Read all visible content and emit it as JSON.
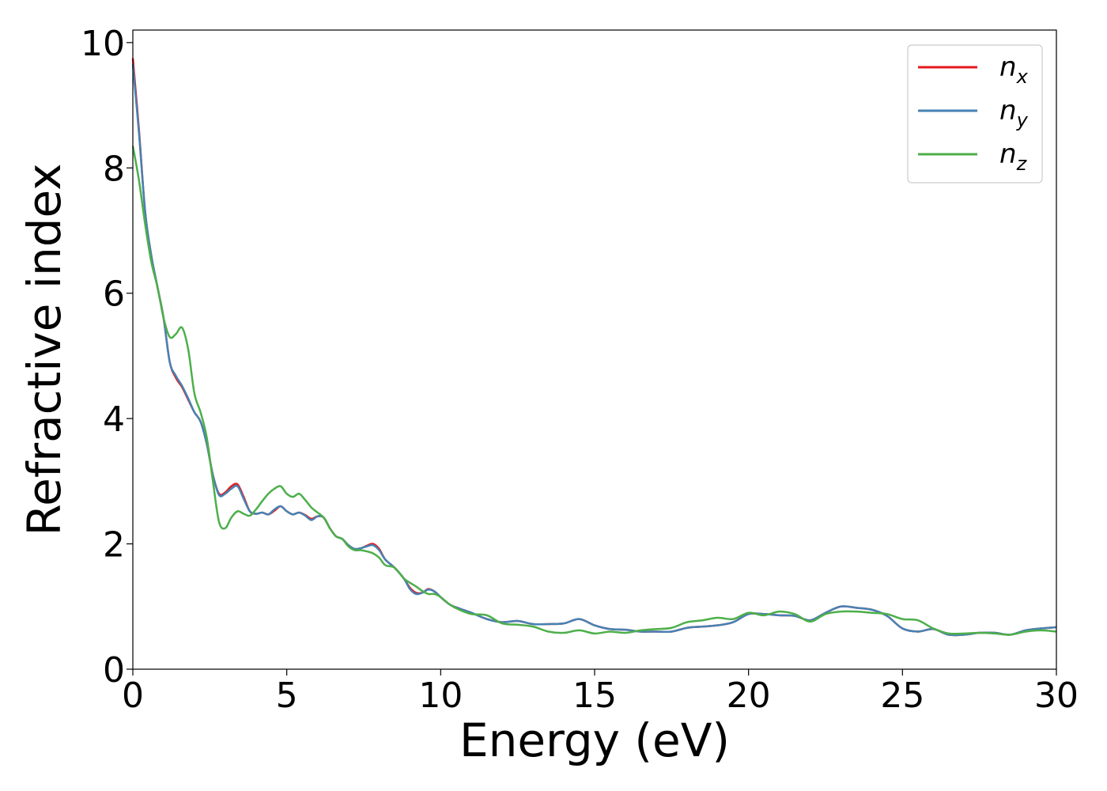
{
  "chart_data": {
    "type": "line",
    "title": "",
    "xlabel": "Energy (eV)",
    "ylabel": "Refractive index",
    "xlim": [
      0,
      30
    ],
    "ylim": [
      0,
      10.2
    ],
    "xticks": [
      0,
      5,
      10,
      15,
      20,
      25,
      30
    ],
    "yticks": [
      0,
      2,
      4,
      6,
      8,
      10
    ],
    "grid": false,
    "legend_position": "top-right",
    "series": [
      {
        "name": "n",
        "subscript": "x",
        "color": "#e41a1c",
        "points": [
          [
            0,
            9.75
          ],
          [
            0.2,
            8.6
          ],
          [
            0.4,
            7.3
          ],
          [
            0.6,
            6.6
          ],
          [
            0.8,
            6.1
          ],
          [
            1.0,
            5.6
          ],
          [
            1.2,
            4.9
          ],
          [
            1.4,
            4.65
          ],
          [
            1.6,
            4.5
          ],
          [
            1.8,
            4.3
          ],
          [
            2.0,
            4.1
          ],
          [
            2.2,
            3.95
          ],
          [
            2.4,
            3.6
          ],
          [
            2.6,
            3.1
          ],
          [
            2.8,
            2.8
          ],
          [
            3.0,
            2.82
          ],
          [
            3.2,
            2.92
          ],
          [
            3.4,
            2.95
          ],
          [
            3.6,
            2.75
          ],
          [
            3.8,
            2.52
          ],
          [
            4.0,
            2.48
          ],
          [
            4.2,
            2.5
          ],
          [
            4.4,
            2.47
          ],
          [
            4.6,
            2.53
          ],
          [
            4.8,
            2.6
          ],
          [
            5.0,
            2.52
          ],
          [
            5.2,
            2.47
          ],
          [
            5.4,
            2.5
          ],
          [
            5.6,
            2.46
          ],
          [
            5.8,
            2.4
          ],
          [
            6.0,
            2.44
          ],
          [
            6.2,
            2.42
          ],
          [
            6.4,
            2.25
          ],
          [
            6.6,
            2.12
          ],
          [
            6.8,
            2.08
          ],
          [
            7.0,
            1.98
          ],
          [
            7.2,
            1.92
          ],
          [
            7.4,
            1.93
          ],
          [
            7.6,
            1.97
          ],
          [
            7.8,
            2.0
          ],
          [
            8.0,
            1.92
          ],
          [
            8.2,
            1.75
          ],
          [
            8.5,
            1.62
          ],
          [
            8.8,
            1.45
          ],
          [
            9.0,
            1.3
          ],
          [
            9.2,
            1.22
          ],
          [
            9.4,
            1.22
          ],
          [
            9.6,
            1.28
          ],
          [
            9.8,
            1.24
          ],
          [
            10.0,
            1.15
          ],
          [
            10.3,
            1.03
          ],
          [
            10.6,
            0.97
          ],
          [
            11.0,
            0.9
          ],
          [
            11.5,
            0.8
          ],
          [
            12.0,
            0.75
          ],
          [
            12.5,
            0.77
          ],
          [
            13.0,
            0.72
          ],
          [
            13.5,
            0.72
          ],
          [
            14.0,
            0.73
          ],
          [
            14.5,
            0.8
          ],
          [
            15.0,
            0.7
          ],
          [
            15.5,
            0.64
          ],
          [
            16.0,
            0.63
          ],
          [
            16.5,
            0.6
          ],
          [
            17.0,
            0.6
          ],
          [
            17.5,
            0.6
          ],
          [
            18.0,
            0.66
          ],
          [
            18.5,
            0.68
          ],
          [
            19.0,
            0.7
          ],
          [
            19.5,
            0.75
          ],
          [
            20.0,
            0.88
          ],
          [
            20.5,
            0.88
          ],
          [
            21.0,
            0.86
          ],
          [
            21.5,
            0.85
          ],
          [
            22.0,
            0.78
          ],
          [
            22.5,
            0.9
          ],
          [
            23.0,
            1.0
          ],
          [
            23.5,
            0.98
          ],
          [
            24.0,
            0.95
          ],
          [
            24.5,
            0.85
          ],
          [
            25.0,
            0.65
          ],
          [
            25.5,
            0.6
          ],
          [
            26.0,
            0.64
          ],
          [
            26.5,
            0.55
          ],
          [
            27.0,
            0.55
          ],
          [
            27.5,
            0.58
          ],
          [
            28.0,
            0.58
          ],
          [
            28.5,
            0.55
          ],
          [
            29.0,
            0.62
          ],
          [
            29.5,
            0.65
          ],
          [
            30.0,
            0.67
          ]
        ]
      },
      {
        "name": "n",
        "subscript": "y",
        "color": "#4682b4",
        "points": [
          [
            0,
            9.65
          ],
          [
            0.2,
            8.55
          ],
          [
            0.4,
            7.3
          ],
          [
            0.6,
            6.6
          ],
          [
            0.8,
            6.1
          ],
          [
            1.0,
            5.6
          ],
          [
            1.2,
            4.9
          ],
          [
            1.4,
            4.68
          ],
          [
            1.6,
            4.52
          ],
          [
            1.8,
            4.32
          ],
          [
            2.0,
            4.1
          ],
          [
            2.2,
            3.95
          ],
          [
            2.4,
            3.6
          ],
          [
            2.6,
            3.1
          ],
          [
            2.8,
            2.78
          ],
          [
            3.0,
            2.8
          ],
          [
            3.2,
            2.88
          ],
          [
            3.4,
            2.92
          ],
          [
            3.6,
            2.72
          ],
          [
            3.8,
            2.52
          ],
          [
            4.0,
            2.48
          ],
          [
            4.2,
            2.5
          ],
          [
            4.4,
            2.47
          ],
          [
            4.6,
            2.55
          ],
          [
            4.8,
            2.6
          ],
          [
            5.0,
            2.52
          ],
          [
            5.2,
            2.47
          ],
          [
            5.4,
            2.5
          ],
          [
            5.6,
            2.45
          ],
          [
            5.8,
            2.38
          ],
          [
            6.0,
            2.44
          ],
          [
            6.2,
            2.42
          ],
          [
            6.4,
            2.25
          ],
          [
            6.6,
            2.12
          ],
          [
            6.8,
            2.08
          ],
          [
            7.0,
            1.98
          ],
          [
            7.2,
            1.92
          ],
          [
            7.4,
            1.93
          ],
          [
            7.6,
            1.96
          ],
          [
            7.8,
            1.98
          ],
          [
            8.0,
            1.9
          ],
          [
            8.2,
            1.75
          ],
          [
            8.5,
            1.62
          ],
          [
            8.8,
            1.45
          ],
          [
            9.0,
            1.28
          ],
          [
            9.2,
            1.2
          ],
          [
            9.4,
            1.22
          ],
          [
            9.6,
            1.27
          ],
          [
            9.8,
            1.24
          ],
          [
            10.0,
            1.15
          ],
          [
            10.3,
            1.03
          ],
          [
            10.6,
            0.97
          ],
          [
            11.0,
            0.9
          ],
          [
            11.5,
            0.8
          ],
          [
            12.0,
            0.75
          ],
          [
            12.5,
            0.77
          ],
          [
            13.0,
            0.72
          ],
          [
            13.5,
            0.72
          ],
          [
            14.0,
            0.73
          ],
          [
            14.5,
            0.8
          ],
          [
            15.0,
            0.7
          ],
          [
            15.5,
            0.64
          ],
          [
            16.0,
            0.63
          ],
          [
            16.5,
            0.6
          ],
          [
            17.0,
            0.6
          ],
          [
            17.5,
            0.6
          ],
          [
            18.0,
            0.66
          ],
          [
            18.5,
            0.68
          ],
          [
            19.0,
            0.7
          ],
          [
            19.5,
            0.75
          ],
          [
            20.0,
            0.88
          ],
          [
            20.5,
            0.88
          ],
          [
            21.0,
            0.86
          ],
          [
            21.5,
            0.85
          ],
          [
            22.0,
            0.78
          ],
          [
            22.5,
            0.9
          ],
          [
            23.0,
            1.0
          ],
          [
            23.5,
            0.98
          ],
          [
            24.0,
            0.95
          ],
          [
            24.5,
            0.85
          ],
          [
            25.0,
            0.65
          ],
          [
            25.5,
            0.6
          ],
          [
            26.0,
            0.64
          ],
          [
            26.5,
            0.55
          ],
          [
            27.0,
            0.55
          ],
          [
            27.5,
            0.58
          ],
          [
            28.0,
            0.58
          ],
          [
            28.5,
            0.55
          ],
          [
            29.0,
            0.62
          ],
          [
            29.5,
            0.65
          ],
          [
            30.0,
            0.67
          ]
        ]
      },
      {
        "name": "n",
        "subscript": "z",
        "color": "#4daf4a",
        "points": [
          [
            0,
            8.35
          ],
          [
            0.2,
            7.8
          ],
          [
            0.4,
            7.1
          ],
          [
            0.6,
            6.5
          ],
          [
            0.8,
            6.1
          ],
          [
            1.0,
            5.6
          ],
          [
            1.2,
            5.3
          ],
          [
            1.4,
            5.35
          ],
          [
            1.6,
            5.45
          ],
          [
            1.8,
            5.1
          ],
          [
            2.0,
            4.4
          ],
          [
            2.2,
            4.1
          ],
          [
            2.4,
            3.7
          ],
          [
            2.6,
            3.0
          ],
          [
            2.8,
            2.35
          ],
          [
            3.0,
            2.25
          ],
          [
            3.2,
            2.42
          ],
          [
            3.4,
            2.52
          ],
          [
            3.6,
            2.48
          ],
          [
            3.8,
            2.45
          ],
          [
            4.0,
            2.55
          ],
          [
            4.2,
            2.68
          ],
          [
            4.4,
            2.8
          ],
          [
            4.6,
            2.88
          ],
          [
            4.8,
            2.92
          ],
          [
            5.0,
            2.8
          ],
          [
            5.2,
            2.75
          ],
          [
            5.4,
            2.8
          ],
          [
            5.6,
            2.7
          ],
          [
            5.8,
            2.58
          ],
          [
            6.0,
            2.5
          ],
          [
            6.2,
            2.42
          ],
          [
            6.4,
            2.25
          ],
          [
            6.6,
            2.12
          ],
          [
            6.8,
            2.08
          ],
          [
            7.0,
            1.96
          ],
          [
            7.2,
            1.9
          ],
          [
            7.4,
            1.9
          ],
          [
            7.6,
            1.88
          ],
          [
            7.8,
            1.85
          ],
          [
            8.0,
            1.78
          ],
          [
            8.2,
            1.66
          ],
          [
            8.5,
            1.62
          ],
          [
            8.8,
            1.45
          ],
          [
            9.0,
            1.38
          ],
          [
            9.2,
            1.32
          ],
          [
            9.4,
            1.25
          ],
          [
            9.6,
            1.2
          ],
          [
            9.8,
            1.2
          ],
          [
            10.0,
            1.15
          ],
          [
            10.3,
            1.03
          ],
          [
            10.6,
            0.95
          ],
          [
            11.0,
            0.88
          ],
          [
            11.5,
            0.86
          ],
          [
            12.0,
            0.73
          ],
          [
            12.5,
            0.71
          ],
          [
            13.0,
            0.68
          ],
          [
            13.5,
            0.6
          ],
          [
            14.0,
            0.58
          ],
          [
            14.5,
            0.62
          ],
          [
            15.0,
            0.57
          ],
          [
            15.5,
            0.6
          ],
          [
            16.0,
            0.58
          ],
          [
            16.5,
            0.62
          ],
          [
            17.0,
            0.64
          ],
          [
            17.5,
            0.66
          ],
          [
            18.0,
            0.75
          ],
          [
            18.5,
            0.78
          ],
          [
            19.0,
            0.82
          ],
          [
            19.5,
            0.8
          ],
          [
            20.0,
            0.9
          ],
          [
            20.5,
            0.86
          ],
          [
            21.0,
            0.92
          ],
          [
            21.5,
            0.88
          ],
          [
            22.0,
            0.76
          ],
          [
            22.5,
            0.88
          ],
          [
            23.0,
            0.92
          ],
          [
            23.5,
            0.92
          ],
          [
            24.0,
            0.9
          ],
          [
            24.5,
            0.88
          ],
          [
            25.0,
            0.8
          ],
          [
            25.5,
            0.78
          ],
          [
            26.0,
            0.65
          ],
          [
            26.5,
            0.57
          ],
          [
            27.0,
            0.57
          ],
          [
            27.5,
            0.58
          ],
          [
            28.0,
            0.57
          ],
          [
            28.5,
            0.55
          ],
          [
            29.0,
            0.6
          ],
          [
            29.5,
            0.62
          ],
          [
            30.0,
            0.6
          ]
        ]
      }
    ]
  }
}
